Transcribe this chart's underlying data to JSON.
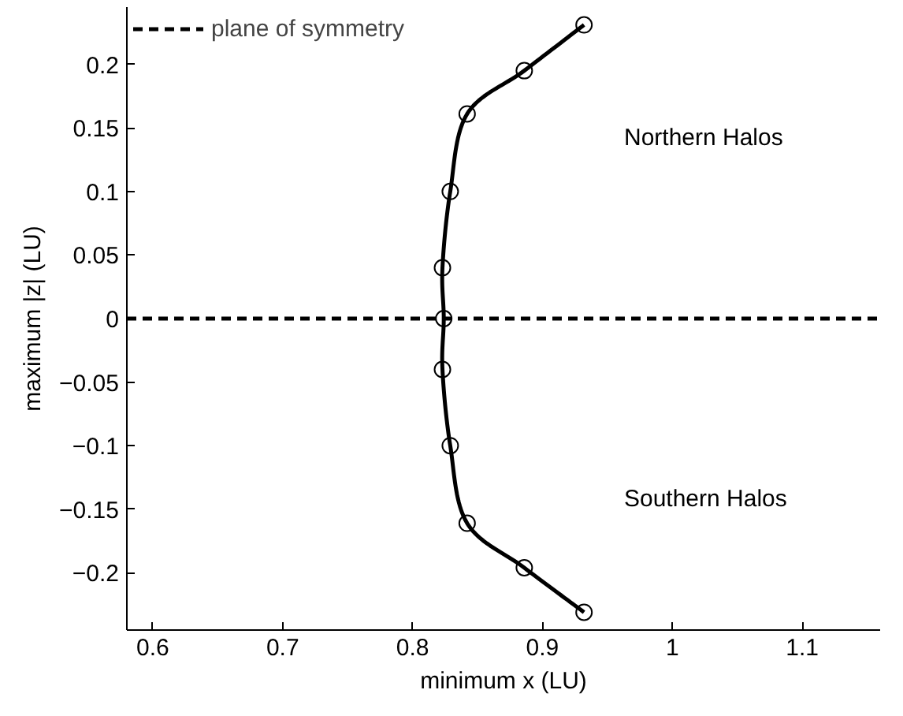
{
  "chart_data": {
    "type": "line",
    "xlabel": "minimum x (LU)",
    "ylabel": "maximum |z| (LU)",
    "xlim": [
      0.58,
      1.16
    ],
    "xticks": [
      0.6,
      0.7,
      0.8,
      0.9,
      1,
      {
        "value": 1.1,
        "label": "1.1"
      }
    ],
    "ylim": [
      -0.245,
      0.245
    ],
    "yticks": [
      {
        "value": -0.2,
        "label": "−0.2"
      },
      {
        "value": -0.15,
        "label": "−0.15"
      },
      {
        "value": -0.1,
        "label": "−0.1"
      },
      {
        "value": -0.05,
        "label": "−0.05"
      },
      0,
      0.05,
      0.1,
      0.15,
      0.2
    ],
    "series": [
      {
        "color": "#000000",
        "x": [
          0.932,
          0.886,
          0.842,
          0.829,
          0.823,
          0.824,
          0.823,
          0.829,
          0.842,
          0.886,
          0.932
        ],
        "values": [
          -0.231,
          -0.196,
          -0.161,
          -0.1,
          -0.04,
          0,
          0.04,
          0.1,
          0.161,
          0.195,
          0.231
        ]
      }
    ],
    "marker": "circle",
    "line_style": "solid",
    "grid": false,
    "legend": "top left",
    "ref_lines": [
      {
        "axis": "y",
        "value": 0,
        "label": "plane of symmetry",
        "color": "#000000",
        "line_style": "dashed"
      }
    ],
    "annotations": [
      "Northern Halos",
      "Southern Halos"
    ]
  }
}
